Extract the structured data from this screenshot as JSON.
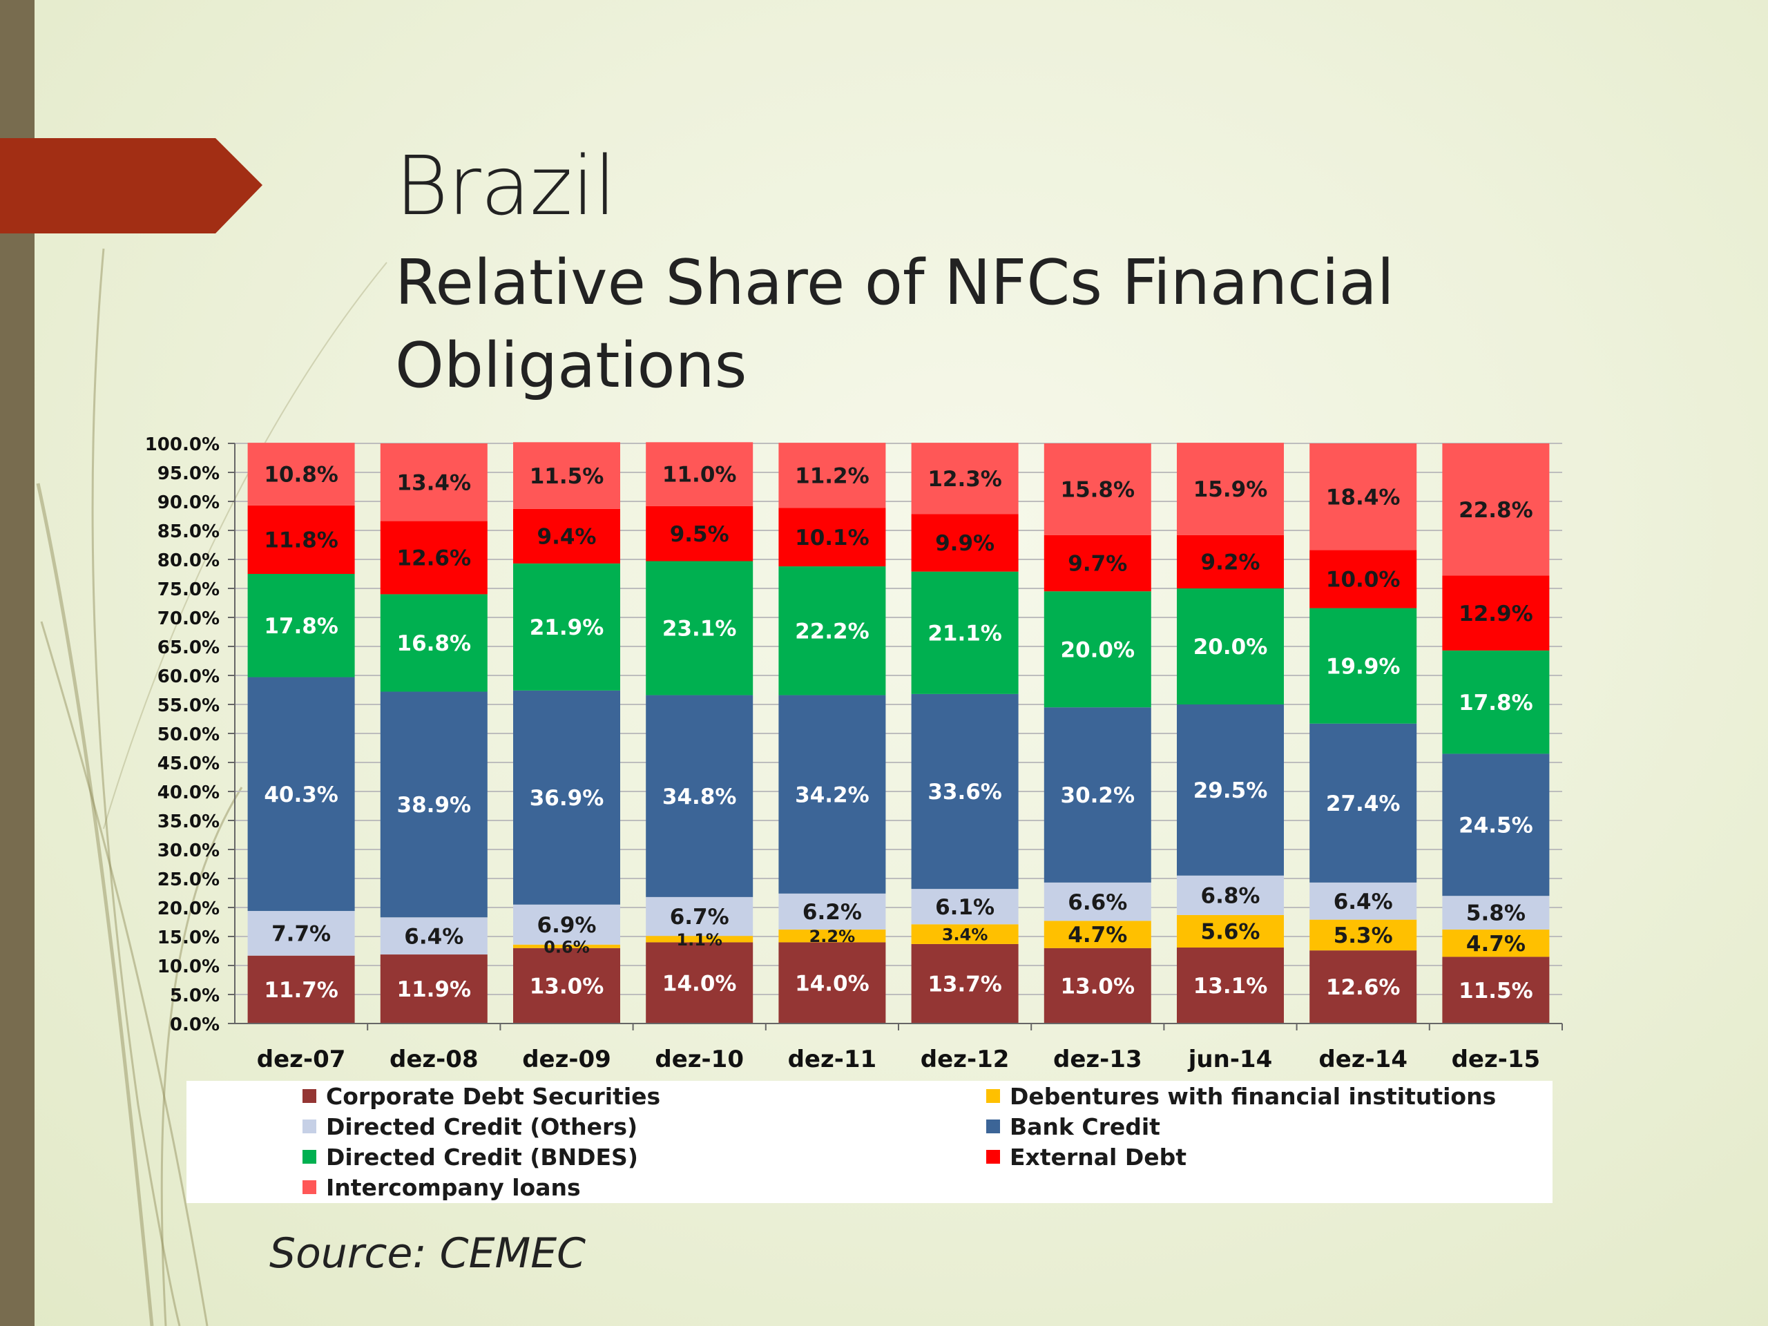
{
  "slide": {
    "title": "Brazil",
    "subtitle": "Relative Share of NFCs Financial Obligations",
    "source": "Source: CEMEC",
    "colors": {
      "left_bar": "#786c4f",
      "arrow": "#a22e14",
      "background": "#eef2dc"
    }
  },
  "chart_data": {
    "type": "bar",
    "stacked": true,
    "title": "",
    "xlabel": "",
    "ylabel": "",
    "ylim": [
      0,
      100
    ],
    "ytick_step": 5,
    "ytick_format": "percent_1dp",
    "yticks": [
      "0.0%",
      "5.0%",
      "10.0%",
      "15.0%",
      "20.0%",
      "25.0%",
      "30.0%",
      "35.0%",
      "40.0%",
      "45.0%",
      "50.0%",
      "55.0%",
      "60.0%",
      "65.0%",
      "70.0%",
      "75.0%",
      "80.0%",
      "85.0%",
      "90.0%",
      "95.0%",
      "100.0%"
    ],
    "grid": true,
    "legend_position": "bottom",
    "categories": [
      "dez-07",
      "dez-08",
      "dez-09",
      "dez-10",
      "dez-11",
      "dez-12",
      "dez-13",
      "jun-14",
      "dez-14",
      "dez-15"
    ],
    "series": [
      {
        "name": "Corporate Debt Securities",
        "color": "#943634",
        "label_color": "#ffffff",
        "values": [
          11.7,
          11.9,
          13.0,
          14.0,
          14.0,
          13.7,
          13.0,
          13.1,
          12.6,
          11.5
        ],
        "labels": [
          "11.7%",
          "11.9%",
          "13.0%",
          "14.0%",
          "14.0%",
          "13.7%",
          "13.0%",
          "13.1%",
          "12.6%",
          "11.5%"
        ]
      },
      {
        "name": "Debentures with financial institutions",
        "color": "#ffc000",
        "label_color": "#1a1a1a",
        "values": [
          0,
          0,
          0.6,
          1.1,
          2.2,
          3.4,
          4.7,
          5.6,
          5.3,
          4.7
        ],
        "labels": [
          "",
          "",
          "0.6%",
          "1.1%",
          "2.2%",
          "3.4%",
          "4.7%",
          "5.6%",
          "5.3%",
          "4.7%"
        ]
      },
      {
        "name": "Directed Credit (Others)",
        "color": "#c6d0e6",
        "label_color": "#1a1a1a",
        "values": [
          7.7,
          6.4,
          6.9,
          6.7,
          6.2,
          6.1,
          6.6,
          6.8,
          6.4,
          5.8
        ],
        "labels": [
          "7.7%",
          "6.4%",
          "6.9%",
          "6.7%",
          "6.2%",
          "6.1%",
          "6.6%",
          "6.8%",
          "6.4%",
          "5.8%"
        ]
      },
      {
        "name": "Bank Credit",
        "color": "#3c6597",
        "label_color": "#ffffff",
        "values": [
          40.3,
          38.9,
          36.9,
          34.8,
          34.2,
          33.6,
          30.2,
          29.5,
          27.4,
          24.5
        ],
        "labels": [
          "40.3%",
          "38.9%",
          "36.9%",
          "34.8%",
          "34.2%",
          "33.6%",
          "30.2%",
          "29.5%",
          "27.4%",
          "24.5%"
        ]
      },
      {
        "name": "Directed Credit (BNDES)",
        "color": "#00b050",
        "label_color": "#ffffff",
        "values": [
          17.8,
          16.8,
          21.9,
          23.1,
          22.2,
          21.1,
          20.0,
          20.0,
          19.9,
          17.8
        ],
        "labels": [
          "17.8%",
          "16.8%",
          "21.9%",
          "23.1%",
          "22.2%",
          "21.1%",
          "20.0%",
          "20.0%",
          "19.9%",
          "17.8%"
        ]
      },
      {
        "name": "External Debt",
        "color": "#ff0000",
        "label_color": "#1a1a1a",
        "values": [
          11.8,
          12.6,
          9.4,
          9.5,
          10.1,
          9.9,
          9.7,
          9.2,
          10.0,
          12.9
        ],
        "labels": [
          "11.8%",
          "12.6%",
          "9.4%",
          "9.5%",
          "10.1%",
          "9.9%",
          "9.7%",
          "9.2%",
          "10.0%",
          "12.9%"
        ]
      },
      {
        "name": "Intercompany loans",
        "color": "#ff5757",
        "label_color": "#1a1a1a",
        "values": [
          10.8,
          13.4,
          11.5,
          11.0,
          11.2,
          12.3,
          15.8,
          15.9,
          18.4,
          22.8
        ],
        "labels": [
          "10.8%",
          "13.4%",
          "11.5%",
          "11.0%",
          "11.2%",
          "12.3%",
          "15.8%",
          "15.9%",
          "18.4%",
          "22.8%"
        ]
      }
    ],
    "legend_order": [
      "Corporate Debt Securities",
      "Debentures with financial institutions",
      "Directed Credit (Others)",
      "Bank Credit",
      "Directed Credit (BNDES)",
      "External Debt",
      "Intercompany loans"
    ]
  }
}
